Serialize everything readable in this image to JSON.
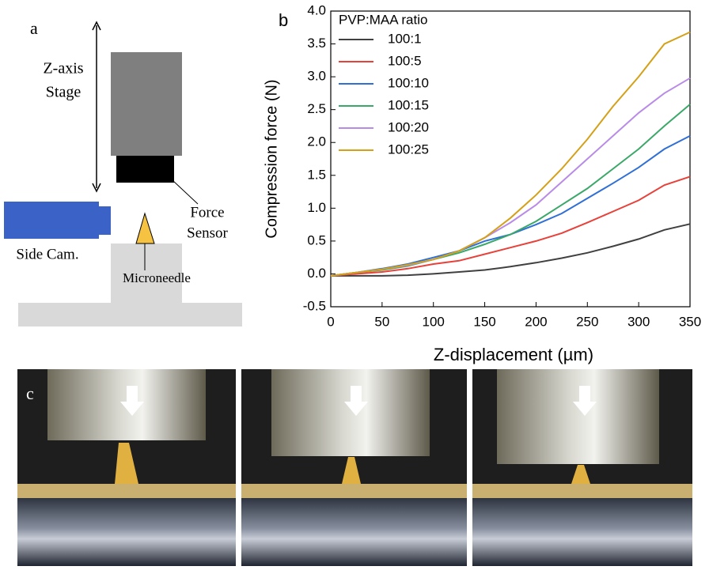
{
  "chart_data": {
    "type": "line",
    "panel_label": "b",
    "xlabel": "Z-displacement (µm)",
    "ylabel": "Compression force (N)",
    "legend_title": "PVP:MAA ratio",
    "legend": "upper-left",
    "x": [
      0,
      25,
      50,
      75,
      100,
      125,
      150,
      175,
      200,
      225,
      250,
      275,
      300,
      325,
      350
    ],
    "series": [
      {
        "name": "100:1",
        "color": "#404040",
        "values": [
          -0.03,
          -0.03,
          -0.03,
          -0.02,
          0.0,
          0.03,
          0.06,
          0.11,
          0.17,
          0.24,
          0.32,
          0.42,
          0.53,
          0.67,
          0.76
        ]
      },
      {
        "name": "100:5",
        "color": "#e8413a",
        "values": [
          -0.03,
          0.0,
          0.03,
          0.08,
          0.15,
          0.2,
          0.3,
          0.4,
          0.5,
          0.62,
          0.78,
          0.95,
          1.12,
          1.35,
          1.48
        ]
      },
      {
        "name": "100:10",
        "color": "#2f6fd6",
        "values": [
          -0.03,
          0.02,
          0.08,
          0.15,
          0.25,
          0.35,
          0.5,
          0.6,
          0.75,
          0.92,
          1.15,
          1.38,
          1.62,
          1.9,
          2.1
        ]
      },
      {
        "name": "100:15",
        "color": "#3aa868",
        "values": [
          -0.03,
          0.02,
          0.06,
          0.12,
          0.22,
          0.32,
          0.45,
          0.6,
          0.8,
          1.05,
          1.3,
          1.6,
          1.9,
          2.25,
          2.58
        ]
      },
      {
        "name": "100:20",
        "color": "#b98be8",
        "values": [
          -0.03,
          0.02,
          0.07,
          0.13,
          0.22,
          0.35,
          0.55,
          0.78,
          1.05,
          1.4,
          1.75,
          2.1,
          2.45,
          2.75,
          2.98
        ]
      },
      {
        "name": "100:25",
        "color": "#d4a017",
        "values": [
          -0.03,
          0.02,
          0.07,
          0.14,
          0.22,
          0.35,
          0.55,
          0.85,
          1.2,
          1.6,
          2.05,
          2.55,
          3.0,
          3.5,
          3.68
        ]
      }
    ],
    "xlim": [
      0,
      350
    ],
    "xticks": [
      0,
      50,
      100,
      150,
      200,
      250,
      300,
      350
    ],
    "ylim": [
      -0.5,
      4.0
    ],
    "yticks": [
      -0.5,
      {
        "value": 0,
        "label": "0.0"
      },
      0.5,
      {
        "value": 1,
        "label": "1.0"
      },
      1.5,
      {
        "value": 2,
        "label": "2.0"
      },
      2.5,
      {
        "value": 3,
        "label": "3.0"
      },
      3.5,
      {
        "value": 4,
        "label": "4.0"
      }
    ]
  },
  "diagram": {
    "panel_label": "a",
    "stage": [
      "Z-axis",
      "Stage"
    ],
    "sensor": [
      "Force",
      "Sensor"
    ],
    "camera": "Side Cam.",
    "needle": "Microneedle"
  },
  "photos": {
    "panel_label": "c"
  }
}
